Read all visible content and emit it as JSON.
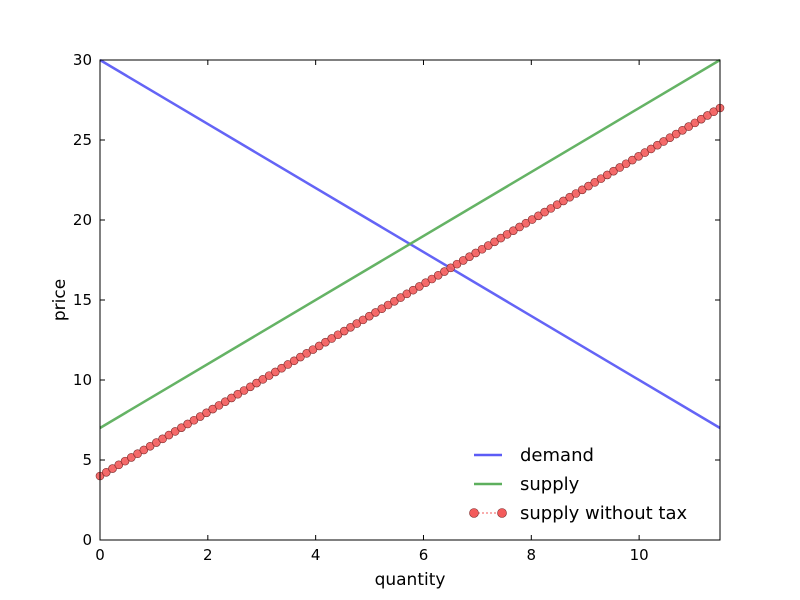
{
  "chart_data": {
    "type": "line",
    "xlabel": "quantity",
    "ylabel": "price",
    "xlim": [
      0,
      11.5
    ],
    "ylim": [
      0,
      30
    ],
    "xticks": [
      "0",
      "2",
      "4",
      "6",
      "8",
      "10"
    ],
    "yticks": [
      "0",
      "5",
      "10",
      "15",
      "20",
      "25",
      "30"
    ],
    "grid": false,
    "legend_position": "lower-right",
    "series": [
      {
        "name": "demand",
        "color": "#5c5cf6",
        "marker": "none",
        "x": [
          0,
          11.5
        ],
        "y": [
          30,
          7
        ]
      },
      {
        "name": "supply",
        "color": "#5daf5d",
        "marker": "none",
        "x": [
          0,
          11.5
        ],
        "y": [
          7,
          30
        ]
      },
      {
        "name": "supply without tax",
        "color": "#f35b5b",
        "marker": "circle",
        "x_start": 0,
        "x_end": 11.5,
        "n_points": 100,
        "y_start": 4,
        "y_end": 27
      }
    ]
  }
}
